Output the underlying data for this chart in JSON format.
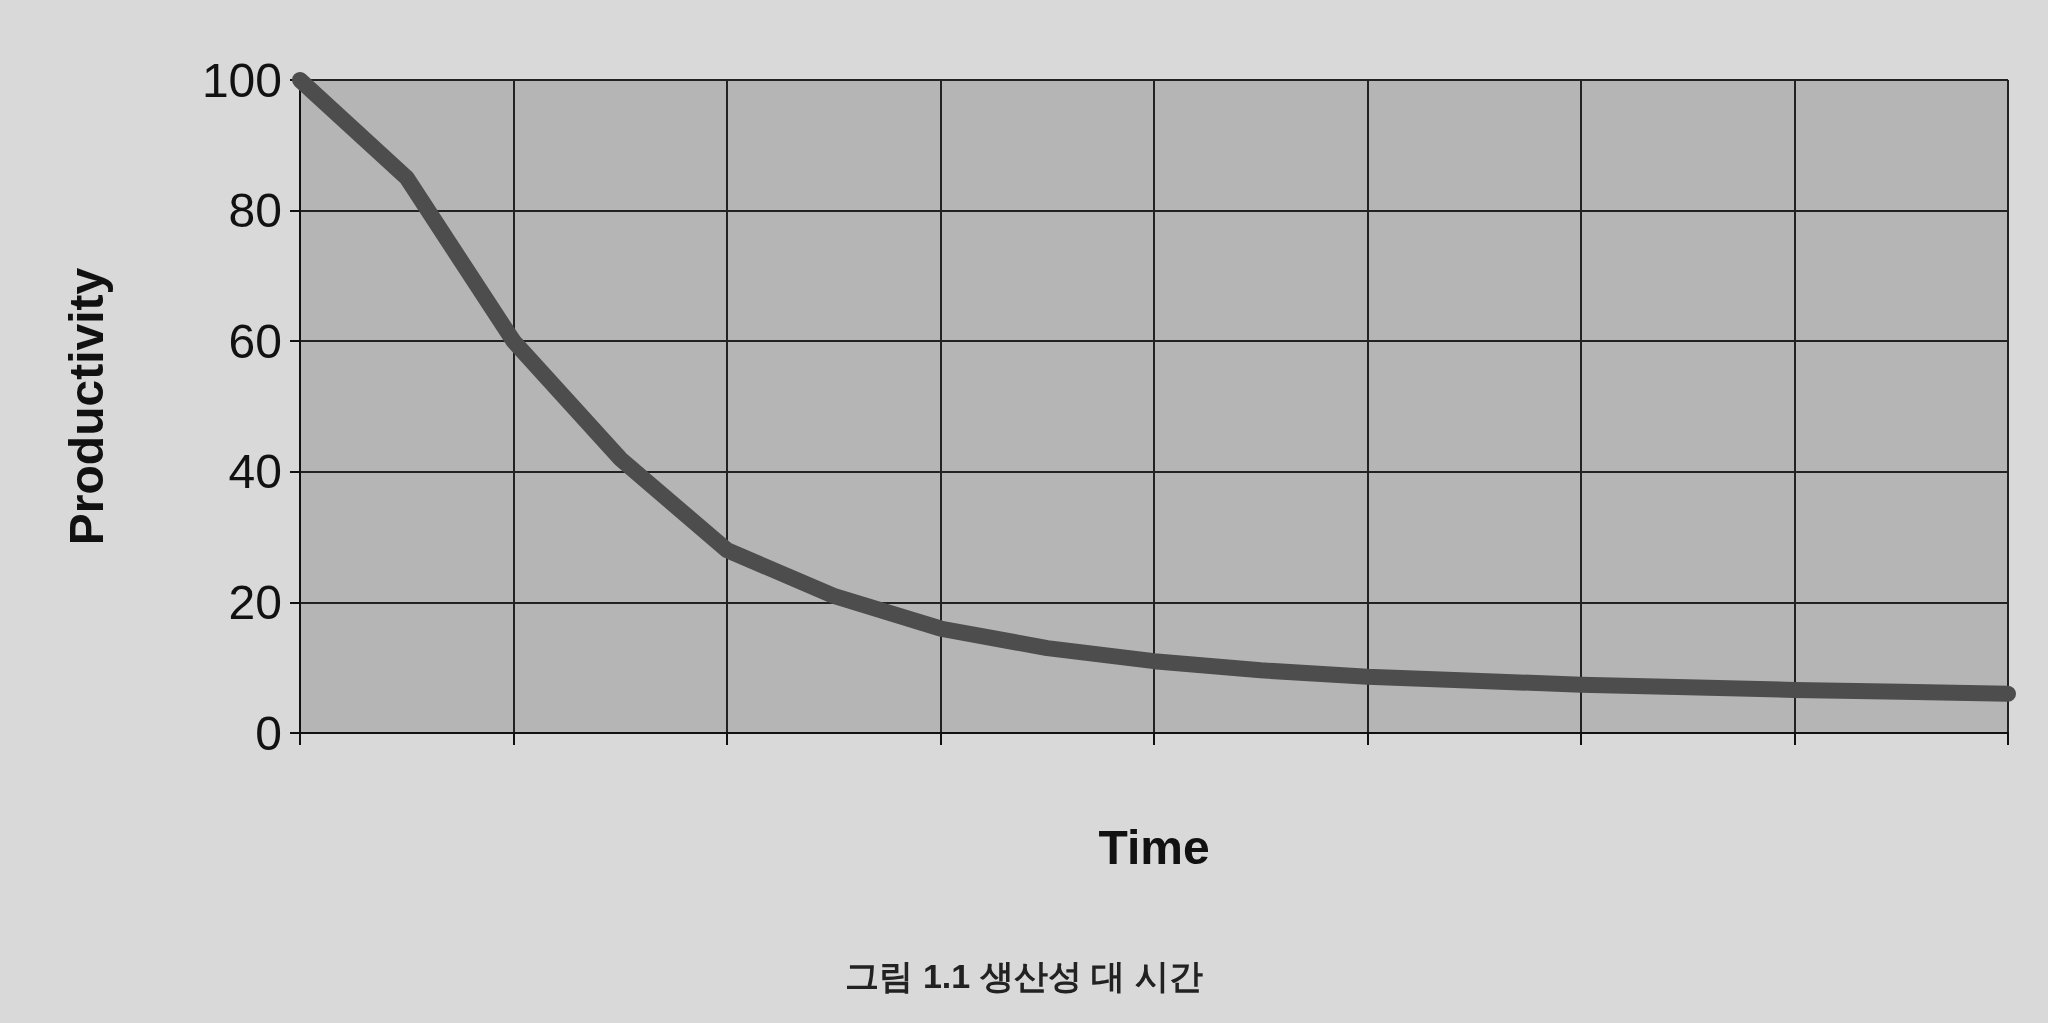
{
  "chart_data": {
    "type": "line",
    "xlabel": "Time",
    "ylabel": "Productivity",
    "categories": [
      null,
      null,
      null,
      null,
      null,
      null,
      null,
      null,
      null,
      null,
      null,
      null,
      null,
      null,
      null,
      null,
      null
    ],
    "series": [
      {
        "color": "#4d4d4d",
        "values": [
          100,
          85,
          60,
          42,
          28,
          21,
          16,
          13,
          11,
          9.6,
          8.6,
          8,
          7.4,
          7,
          6.6,
          6.3,
          6
        ]
      }
    ],
    "ylim": [
      0,
      100
    ],
    "yticks": [
      0,
      20,
      40,
      60,
      80,
      100
    ],
    "grid": true,
    "line_style": "solid",
    "annotations": [
      "그림 1.1 생산성 대 시간"
    ]
  }
}
